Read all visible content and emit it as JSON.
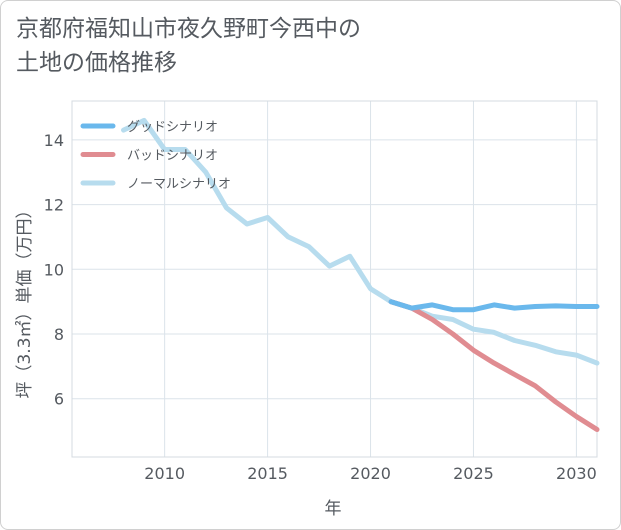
{
  "chart_data": {
    "type": "line",
    "title": "京都府福知山市夜久野町今西中の\n土地の価格推移",
    "xlabel": "年",
    "ylabel": "坪（3.3㎡）単価（万円）",
    "xlim": [
      2005.5,
      2031
    ],
    "ylim": [
      4.2,
      15.2
    ],
    "x_ticks": [
      2010,
      2015,
      2020,
      2025,
      2030
    ],
    "y_ticks": [
      6,
      8,
      10,
      12,
      14
    ],
    "grid": true,
    "legend_position": "top-left",
    "series": [
      {
        "name": "グッドシナリオ",
        "color": "#6ab8ec",
        "x": [
          2021,
          2022,
          2023,
          2024,
          2025,
          2026,
          2027,
          2028,
          2029,
          2030,
          2031
        ],
        "y": [
          9.0,
          8.8,
          8.9,
          8.75,
          8.75,
          8.9,
          8.8,
          8.85,
          8.87,
          8.85,
          8.85
        ]
      },
      {
        "name": "バッドシナリオ",
        "color": "#e08c91",
        "x": [
          2021,
          2022,
          2023,
          2024,
          2025,
          2026,
          2027,
          2028,
          2029,
          2030,
          2031
        ],
        "y": [
          9.0,
          8.8,
          8.45,
          8.0,
          7.5,
          7.1,
          6.75,
          6.4,
          5.9,
          5.45,
          5.05
        ]
      },
      {
        "name": "ノーマルシナリオ",
        "color": "#b7dcee",
        "x": [
          2008,
          2009,
          2010,
          2011,
          2012,
          2013,
          2014,
          2015,
          2016,
          2017,
          2018,
          2019,
          2020,
          2021,
          2022,
          2023,
          2024,
          2025,
          2026,
          2027,
          2028,
          2029,
          2030,
          2031
        ],
        "y": [
          14.3,
          14.6,
          13.7,
          13.7,
          13.0,
          11.9,
          11.4,
          11.6,
          11.0,
          10.7,
          10.1,
          10.4,
          9.4,
          9.0,
          8.8,
          8.55,
          8.45,
          8.15,
          8.05,
          7.8,
          7.65,
          7.45,
          7.35,
          7.1
        ]
      }
    ]
  }
}
